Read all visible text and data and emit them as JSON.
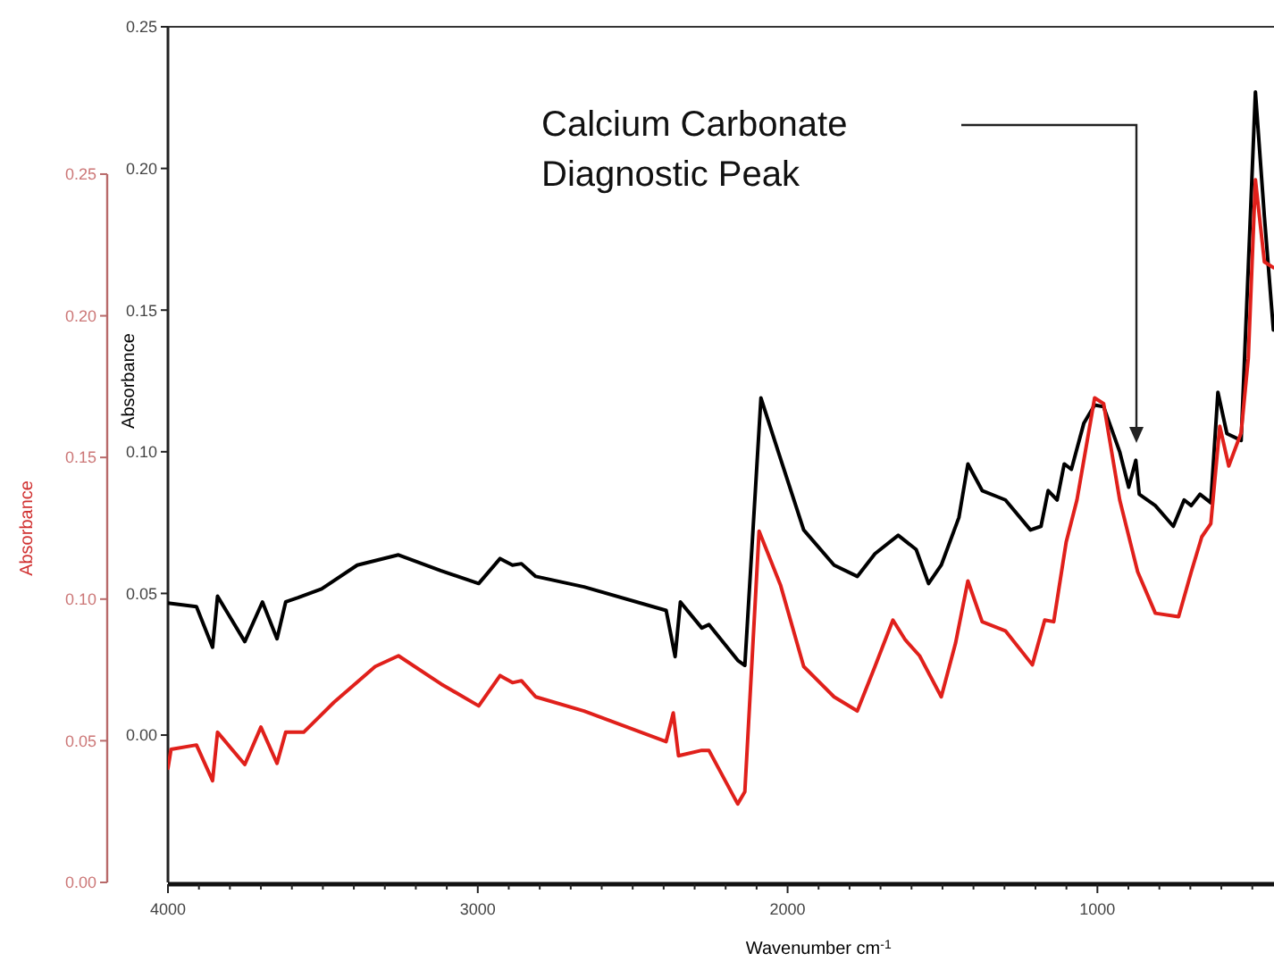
{
  "chart_data": {
    "type": "line",
    "xlabel": "Wavenumber cm$^{-1}$",
    "ylabel": "Absorbance",
    "y2label": "Absorbance",
    "xlim": [
      4000,
      430
    ],
    "xticks": [
      4000,
      {
        "value": 3900,
        "label": null
      },
      {
        "value": 3800,
        "label": null
      },
      {
        "value": 3700,
        "label": null
      },
      {
        "value": 3600,
        "label": null
      },
      {
        "value": 3500,
        "label": null
      },
      {
        "value": 3400,
        "label": null
      },
      {
        "value": 3300,
        "label": null
      },
      {
        "value": 3200,
        "label": null
      },
      {
        "value": 3100,
        "label": null
      },
      3000,
      {
        "value": 2900,
        "label": null
      },
      {
        "value": 2800,
        "label": null
      },
      {
        "value": 2700,
        "label": null
      },
      {
        "value": 2600,
        "label": null
      },
      {
        "value": 2500,
        "label": null
      },
      {
        "value": 2400,
        "label": null
      },
      {
        "value": 2300,
        "label": null
      },
      {
        "value": 2200,
        "label": null
      },
      {
        "value": 2100,
        "label": null
      },
      2000,
      {
        "value": 1900,
        "label": null
      },
      {
        "value": 1800,
        "label": null
      },
      {
        "value": 1700,
        "label": null
      },
      {
        "value": 1600,
        "label": null
      },
      {
        "value": 1500,
        "label": null
      },
      {
        "value": 1400,
        "label": null
      },
      {
        "value": 1300,
        "label": null
      },
      {
        "value": 1200,
        "label": null
      },
      {
        "value": 1100,
        "label": null
      },
      1000,
      {
        "value": 900,
        "label": null
      },
      {
        "value": 800,
        "label": null
      },
      {
        "value": 700,
        "label": null
      },
      {
        "value": 600,
        "label": null
      },
      {
        "value": 500,
        "label": null
      }
    ],
    "ylim": [
      -0.052,
      0.25
    ],
    "yticks": [
      {
        "value": 0,
        "label": "0.00"
      },
      {
        "value": 0.05,
        "label": "0.05"
      },
      {
        "value": 0.1,
        "label": "0.10"
      },
      {
        "value": 0.15,
        "label": "0.15"
      },
      {
        "value": 0.2,
        "label": "0.20"
      },
      {
        "value": 0.25,
        "label": "0.25"
      }
    ],
    "y2lim": [
      0,
      0.302
    ],
    "y2ticks": [
      {
        "value": 0,
        "label": "0.00"
      },
      {
        "value": 0.05,
        "label": "0.05"
      },
      {
        "value": 0.1,
        "label": "0.10"
      },
      {
        "value": 0.15,
        "label": "0.15"
      },
      {
        "value": 0.2,
        "label": "0.20"
      },
      {
        "value": 0.25,
        "label": "0.25"
      }
    ],
    "annotations": [
      "Calcium Carbonate\nDiagnostic Peak"
    ],
    "series": [
      {
        "color": "#000000",
        "x": [
          4000,
          3908,
          3856,
          3840,
          3752,
          3695,
          3648,
          3620,
          3580,
          3504,
          3389,
          3256,
          3118,
          2997,
          2928,
          2888,
          2859,
          2813,
          2657,
          2392,
          2363,
          2346,
          2277,
          2254,
          2161,
          2138,
          2086,
          2023,
          1948,
          1850,
          1775,
          1718,
          1643,
          1585,
          1545,
          1504,
          1447,
          1418,
          1372,
          1297,
          1216,
          1182,
          1159,
          1130,
          1107,
          1084,
          1044,
          1009,
          980,
          928,
          899,
          876,
          865,
          813,
          755,
          720,
          697,
          669,
          634,
          611,
          582,
          536,
          513,
          490,
          461,
          432
        ],
        "values": [
          0.0466,
          0.0453,
          0.031,
          0.049,
          0.033,
          0.047,
          0.034,
          0.047,
          0.0485,
          0.0516,
          0.06,
          0.0636,
          0.058,
          0.0535,
          0.0623,
          0.06,
          0.0605,
          0.056,
          0.0523,
          0.044,
          0.0277,
          0.047,
          0.0378,
          0.039,
          0.0264,
          0.0246,
          0.119,
          0.0976,
          0.0724,
          0.06,
          0.056,
          0.064,
          0.0705,
          0.0655,
          0.0535,
          0.06,
          0.0768,
          0.0957,
          0.0863,
          0.083,
          0.0724,
          0.0737,
          0.0863,
          0.083,
          0.0957,
          0.0938,
          0.11,
          0.1165,
          0.1159,
          0.1,
          0.0875,
          0.097,
          0.085,
          0.081,
          0.0737,
          0.083,
          0.081,
          0.085,
          0.082,
          0.121,
          0.1064,
          0.104,
          0.165,
          0.227,
          0.183,
          0.143
        ]
      },
      {
        "axis": "y2",
        "color": "#e0201b",
        "x": [
          4000,
          3990,
          3908,
          3856,
          3840,
          3752,
          3700,
          3648,
          3620,
          3562,
          3464,
          3331,
          3256,
          3118,
          2997,
          2928,
          2888,
          2859,
          2813,
          2657,
          2392,
          2369,
          2352,
          2277,
          2254,
          2161,
          2138,
          2092,
          2023,
          1948,
          1850,
          1775,
          1718,
          1660,
          1620,
          1574,
          1504,
          1458,
          1418,
          1372,
          1297,
          1210,
          1170,
          1141,
          1101,
          1066,
          1009,
          980,
          928,
          870,
          813,
          738,
          697,
          663,
          634,
          605,
          576,
          536,
          513,
          490,
          461,
          432
        ],
        "values": [
          0.0403,
          0.047,
          0.0485,
          0.0359,
          0.053,
          0.0416,
          0.0548,
          0.042,
          0.053,
          0.053,
          0.0636,
          0.0762,
          0.08,
          0.07,
          0.0623,
          0.073,
          0.0705,
          0.0712,
          0.0655,
          0.0605,
          0.0497,
          0.0598,
          0.0447,
          0.0466,
          0.0466,
          0.0277,
          0.032,
          0.124,
          0.105,
          0.0762,
          0.0655,
          0.0605,
          0.0762,
          0.0926,
          0.0856,
          0.08,
          0.0655,
          0.0844,
          0.1064,
          0.092,
          0.0888,
          0.0768,
          0.0926,
          0.092,
          0.12,
          0.135,
          0.171,
          0.169,
          0.135,
          0.1096,
          0.095,
          0.0938,
          0.1096,
          0.122,
          0.1266,
          0.161,
          0.147,
          0.1587,
          0.185,
          0.248,
          0.219,
          0.217
        ]
      }
    ]
  }
}
